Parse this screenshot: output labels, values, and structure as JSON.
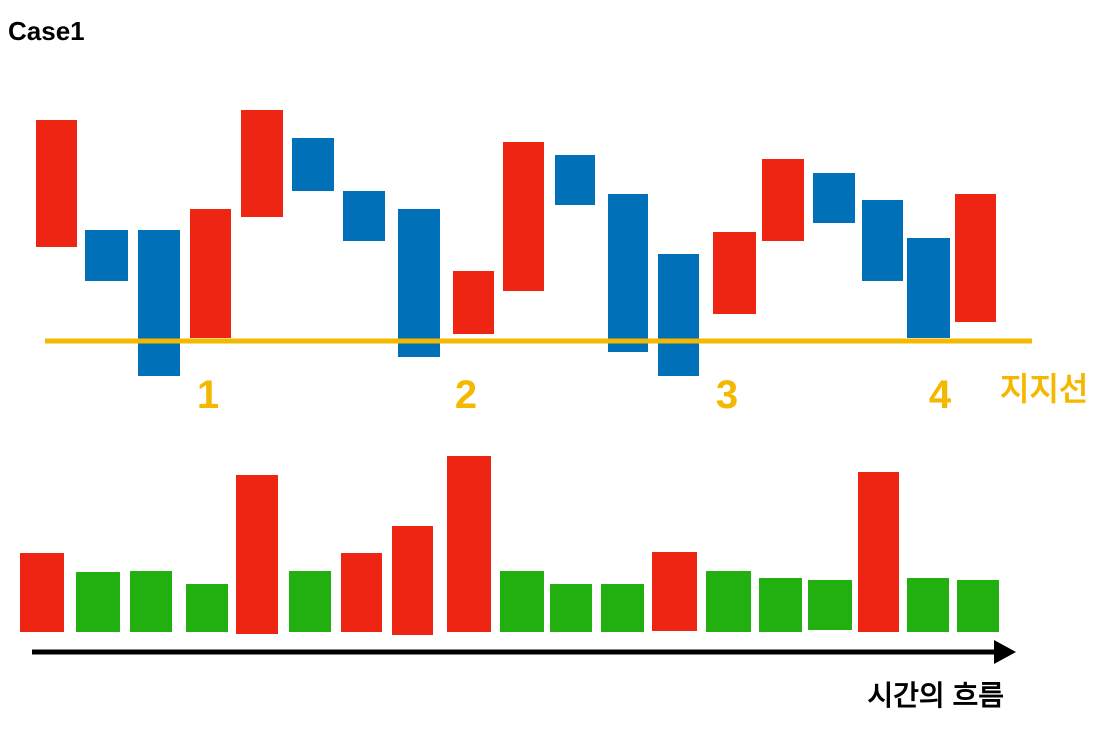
{
  "header": {
    "title": "Case1"
  },
  "support_points": [
    "1",
    "2",
    "3",
    "4"
  ],
  "support_label": "지지선",
  "time_label": "시간의 흐름"
}
